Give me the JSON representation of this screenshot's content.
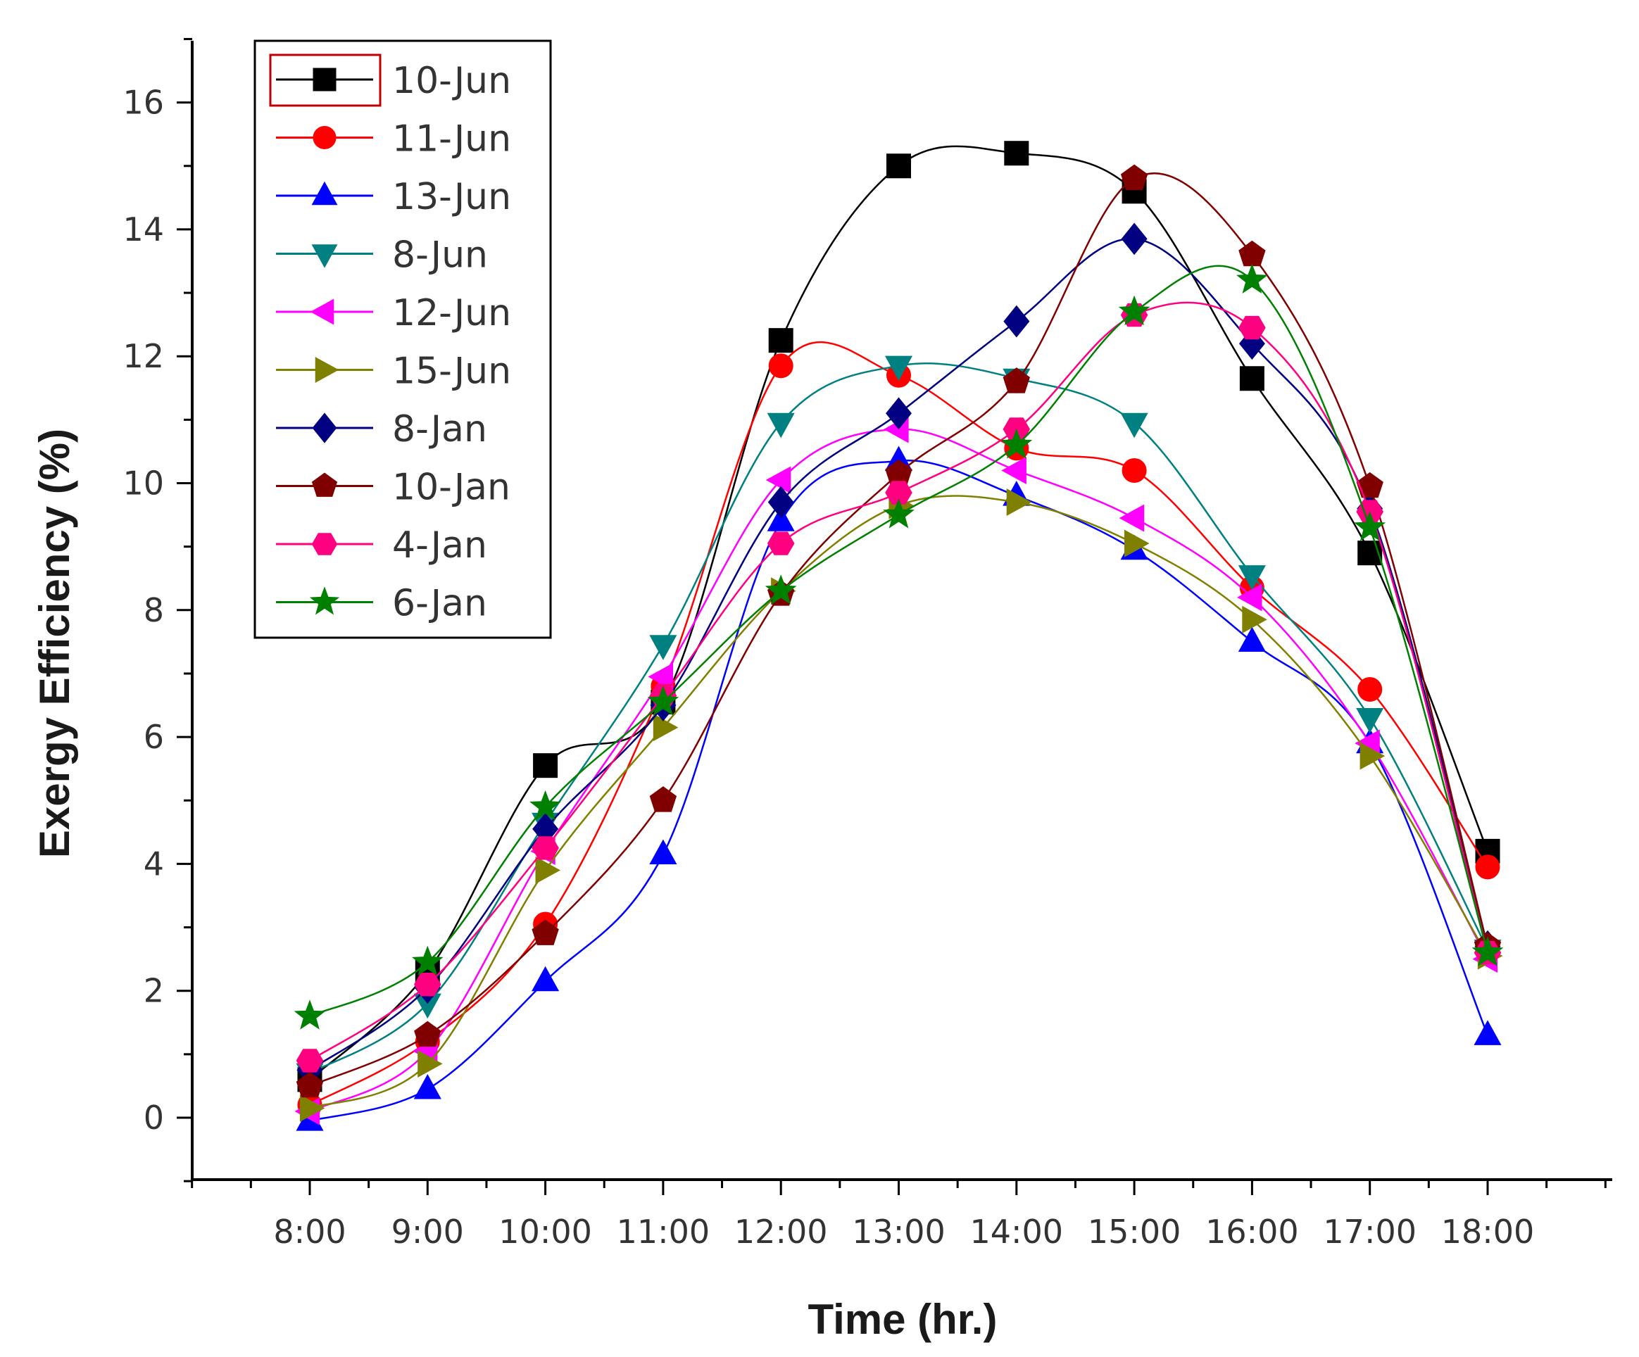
{
  "chart_data": {
    "type": "line",
    "title": "",
    "xlabel": "Time (hr.)",
    "ylabel": "Exergy Efficiency (%)",
    "categories": [
      "8:00",
      "9:00",
      "10:00",
      "11:00",
      "12:00",
      "13:00",
      "14:00",
      "15:00",
      "16:00",
      "17:00",
      "18:00"
    ],
    "ylim": [
      -1,
      17
    ],
    "yticks": [
      "0",
      "2",
      "4",
      "6",
      "8",
      "10",
      "12",
      "14",
      "16"
    ],
    "grid": false,
    "legend_position": "top-left",
    "series": [
      {
        "name": "10-Jun",
        "color": "#000000",
        "marker": "square",
        "values": [
          0.6,
          2.3,
          5.55,
          6.55,
          12.25,
          15.0,
          15.2,
          14.6,
          11.65,
          8.9,
          4.2
        ]
      },
      {
        "name": "11-Jun",
        "color": "#ff0000",
        "marker": "circle",
        "values": [
          0.2,
          1.2,
          3.05,
          6.8,
          11.85,
          11.7,
          10.55,
          10.2,
          8.35,
          6.75,
          3.95
        ]
      },
      {
        "name": "13-Jun",
        "color": "#0000ff",
        "marker": "triangle-up",
        "values": [
          -0.05,
          0.45,
          2.15,
          4.15,
          9.4,
          10.35,
          9.8,
          8.95,
          7.5,
          5.9,
          1.3
        ]
      },
      {
        "name": "8-Jun",
        "color": "#008080",
        "marker": "triangle-down",
        "values": [
          0.7,
          1.8,
          4.65,
          7.45,
          10.95,
          11.85,
          11.65,
          10.95,
          8.55,
          6.3,
          2.65
        ]
      },
      {
        "name": "12-Jun",
        "color": "#ff00ff",
        "marker": "triangle-left",
        "values": [
          0.1,
          1.05,
          4.2,
          6.95,
          10.05,
          10.85,
          10.2,
          9.45,
          8.2,
          5.9,
          2.5
        ]
      },
      {
        "name": "15-Jun",
        "color": "#808000",
        "marker": "triangle-right",
        "values": [
          0.15,
          0.85,
          3.9,
          6.15,
          8.3,
          9.65,
          9.7,
          9.05,
          7.85,
          5.7,
          2.55
        ]
      },
      {
        "name": "8-Jan",
        "color": "#000080",
        "marker": "diamond",
        "values": [
          0.75,
          2.05,
          4.55,
          6.5,
          9.7,
          11.1,
          12.55,
          13.85,
          12.2,
          9.6,
          2.7
        ]
      },
      {
        "name": "10-Jan",
        "color": "#800000",
        "marker": "pentagon",
        "values": [
          0.5,
          1.3,
          2.9,
          5.0,
          8.25,
          10.15,
          11.6,
          14.8,
          13.6,
          9.95,
          2.7
        ]
      },
      {
        "name": "4-Jan",
        "color": "#ff0080",
        "marker": "hexagon",
        "values": [
          0.9,
          2.1,
          4.25,
          6.65,
          9.05,
          9.85,
          10.85,
          12.65,
          12.45,
          9.55,
          2.6
        ]
      },
      {
        "name": "6-Jan",
        "color": "#008000",
        "marker": "star",
        "values": [
          1.6,
          2.45,
          4.9,
          6.55,
          8.3,
          9.5,
          10.6,
          12.7,
          13.2,
          9.3,
          2.6
        ]
      }
    ]
  }
}
